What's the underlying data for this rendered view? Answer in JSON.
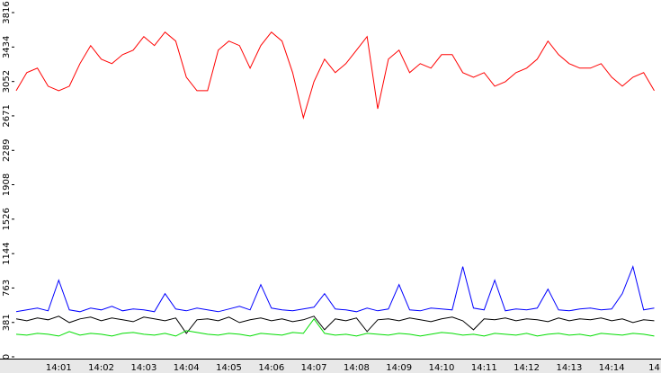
{
  "chart_data": {
    "type": "line",
    "categories": [
      null,
      null,
      null,
      null,
      "14:01",
      null,
      null,
      null,
      "14:02",
      null,
      null,
      null,
      "14:03",
      null,
      null,
      null,
      "14:04",
      null,
      null,
      null,
      "14:05",
      null,
      null,
      null,
      "14:06",
      null,
      null,
      null,
      "14:07",
      null,
      null,
      null,
      "14:08",
      null,
      null,
      null,
      "14:09",
      null,
      null,
      null,
      "14:10",
      null,
      null,
      null,
      "14:11",
      null,
      null,
      null,
      "14:12",
      null,
      null,
      null,
      "14:13",
      null,
      null,
      null,
      "14:14",
      null,
      null,
      null,
      "14"
    ],
    "series": [
      {
        "color": "#ff0000",
        "values": [
          2950,
          3150,
          3200,
          3000,
          2950,
          3000,
          3250,
          3450,
          3300,
          3250,
          3350,
          3400,
          3550,
          3450,
          3600,
          3500,
          3100,
          2950,
          2950,
          3400,
          3500,
          3450,
          3200,
          3450,
          3600,
          3500,
          3150,
          2650,
          3050,
          3300,
          3150,
          3250,
          3400,
          3550,
          2750,
          3300,
          3400,
          3150,
          3250,
          3200,
          3350,
          3350,
          3150,
          3100,
          3150,
          3000,
          3050,
          3150,
          3200,
          3300,
          3500,
          3350,
          3250,
          3200,
          3200,
          3250,
          3100,
          3000,
          3100,
          3150,
          2950
        ]
      },
      {
        "color": "#0000ff",
        "values": [
          500,
          520,
          540,
          510,
          850,
          520,
          500,
          540,
          520,
          560,
          510,
          530,
          520,
          500,
          700,
          530,
          510,
          540,
          520,
          500,
          530,
          560,
          520,
          800,
          540,
          520,
          510,
          530,
          550,
          700,
          530,
          520,
          500,
          540,
          510,
          530,
          800,
          520,
          510,
          540,
          530,
          520,
          1000,
          540,
          520,
          850,
          510,
          530,
          520,
          540,
          750,
          520,
          510,
          530,
          540,
          520,
          530,
          700,
          1000,
          520,
          540
        ]
      },
      {
        "color": "#000000",
        "values": [
          420,
          400,
          430,
          410,
          450,
          380,
          420,
          440,
          400,
          430,
          410,
          390,
          440,
          420,
          400,
          430,
          260,
          410,
          420,
          400,
          440,
          380,
          410,
          430,
          400,
          420,
          390,
          410,
          450,
          300,
          420,
          400,
          430,
          280,
          410,
          420,
          400,
          430,
          410,
          390,
          420,
          440,
          400,
          300,
          420,
          410,
          430,
          400,
          420,
          410,
          390,
          430,
          400,
          420,
          410,
          430,
          400,
          420,
          380,
          410,
          400
        ]
      },
      {
        "color": "#00dd00",
        "values": [
          250,
          240,
          260,
          250,
          230,
          280,
          240,
          260,
          250,
          230,
          260,
          270,
          250,
          240,
          260,
          230,
          290,
          270,
          250,
          240,
          260,
          250,
          230,
          260,
          250,
          240,
          270,
          260,
          420,
          260,
          240,
          250,
          230,
          260,
          250,
          240,
          260,
          250,
          230,
          250,
          270,
          260,
          240,
          250,
          230,
          260,
          250,
          240,
          260,
          230,
          250,
          260,
          240,
          250,
          230,
          260,
          250,
          240,
          260,
          250,
          230
        ]
      }
    ],
    "ylim": [
      0,
      3816
    ],
    "yticks": [
      0,
      381,
      763,
      1144,
      1526,
      1908,
      2289,
      2671,
      3052,
      3434,
      3816
    ]
  }
}
